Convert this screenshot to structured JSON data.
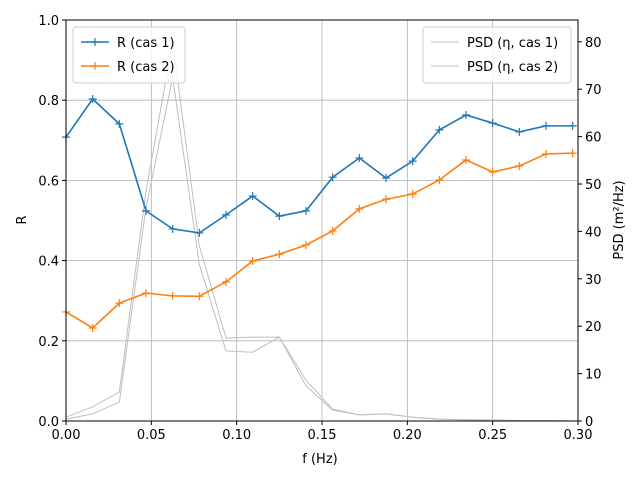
{
  "chart_data": {
    "type": "line",
    "xlabel": "f (Hz)",
    "ylabel": "R",
    "ylabel_right": "PSD (m²/Hz)",
    "xlim": [
      0,
      0.3
    ],
    "ylim": [
      0,
      1.0
    ],
    "ylim_right": [
      0,
      84.6
    ],
    "grid": true,
    "x_ticks": [
      "0.00",
      "0.05",
      "0.10",
      "0.15",
      "0.20",
      "0.25",
      "0.30"
    ],
    "y_ticks": [
      "0.0",
      "0.2",
      "0.4",
      "0.6",
      "0.8",
      "1.0"
    ],
    "y_right_ticks": [
      "0",
      "10",
      "20",
      "30",
      "40",
      "50",
      "60",
      "70",
      "80"
    ],
    "x": [
      0,
      0.015625,
      0.03125,
      0.046875,
      0.0625,
      0.078125,
      0.09375,
      0.109375,
      0.125,
      0.140625,
      0.15625,
      0.171875,
      0.1875,
      0.203125,
      0.21875,
      0.234375,
      0.25,
      0.265625,
      0.28125,
      0.296875
    ],
    "series": [
      {
        "name": "R (cas 1)",
        "axis": "left",
        "color": "#1f77b4",
        "marker": "+",
        "values": [
          0.708,
          0.803,
          0.741,
          0.524,
          0.479,
          0.469,
          0.514,
          0.561,
          0.511,
          0.524,
          0.608,
          0.656,
          0.606,
          0.648,
          0.726,
          0.763,
          0.743,
          0.721,
          0.736,
          0.736
        ]
      },
      {
        "name": "R (cas 2)",
        "axis": "left",
        "color": "#ff7f0e",
        "marker": "+",
        "values": [
          0.272,
          0.232,
          0.294,
          0.319,
          0.312,
          0.311,
          0.347,
          0.399,
          0.416,
          0.439,
          0.474,
          0.529,
          0.553,
          0.566,
          0.601,
          0.651,
          0.621,
          0.636,
          0.666,
          0.668
        ]
      },
      {
        "name": "PSD (η, cas 1)",
        "axis": "right",
        "color": "#bfbfbf",
        "values": [
          0.8,
          3.0,
          6.1,
          48.5,
          80.0,
          37.0,
          17.5,
          17.7,
          17.7,
          8.6,
          2.5,
          1.3,
          1.5,
          0.8,
          0.4,
          0.2,
          0.2,
          0.1,
          0.1,
          0.0
        ]
      },
      {
        "name": "PSD (η, cas 2)",
        "axis": "right",
        "color": "#bfbfbf",
        "values": [
          0.4,
          1.5,
          4.0,
          45.0,
          72.5,
          33.0,
          14.8,
          14.5,
          17.7,
          7.4,
          2.3,
          1.3,
          1.5,
          0.8,
          0.4,
          0.3,
          0.2,
          0.1,
          0.1,
          0.0
        ]
      }
    ],
    "legend_left": "top-left",
    "legend_right": "top-right"
  }
}
